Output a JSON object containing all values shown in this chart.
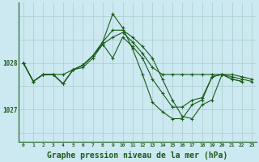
{
  "bg_color": "#cce8f0",
  "grid_color": "#aacccc",
  "line_color": "#1a5c1a",
  "xlabel": "Graphe pression niveau de la mer (hPa)",
  "xlabel_fontsize": 7,
  "xtick_labels": [
    "0",
    "1",
    "2",
    "3",
    "4",
    "5",
    "6",
    "7",
    "8",
    "9",
    "10",
    "11",
    "12",
    "13",
    "14",
    "15",
    "16",
    "17",
    "18",
    "19",
    "20",
    "21",
    "22",
    "23"
  ],
  "yticks": [
    1027,
    1028
  ],
  "ylim": [
    1026.3,
    1029.3
  ],
  "xlim": [
    -0.5,
    23.5
  ],
  "series": [
    [
      1028.0,
      1027.6,
      1027.75,
      1027.75,
      1027.75,
      1027.85,
      1027.9,
      1028.1,
      1028.4,
      1028.55,
      1028.65,
      1028.45,
      1028.2,
      1027.9,
      1027.75,
      1027.75,
      1027.75,
      1027.75,
      1027.75,
      1027.75,
      1027.75,
      1027.75,
      1027.7,
      1027.65
    ],
    [
      1028.0,
      1027.6,
      1027.75,
      1027.75,
      1027.55,
      1027.85,
      1027.95,
      1028.15,
      1028.4,
      1028.1,
      1028.55,
      1028.35,
      1028.1,
      1027.65,
      1027.35,
      1027.05,
      1027.05,
      1027.2,
      1027.25,
      1027.7,
      1027.75,
      1027.65,
      1027.6,
      null
    ],
    [
      1028.0,
      1027.6,
      1027.75,
      1027.75,
      1027.55,
      1027.85,
      1027.95,
      1028.15,
      1028.45,
      1028.7,
      1028.7,
      1028.55,
      1028.35,
      1028.1,
      1027.65,
      1027.2,
      1026.85,
      1026.8,
      1027.1,
      1027.2,
      1027.75,
      1027.7,
      1027.65,
      1027.6
    ],
    [
      1028.0,
      1027.6,
      1027.75,
      1027.75,
      1027.55,
      1027.85,
      1027.95,
      1028.15,
      1028.45,
      1029.05,
      1028.75,
      1028.3,
      1027.75,
      1027.15,
      1026.95,
      1026.8,
      1026.8,
      1027.1,
      1027.2,
      1027.7,
      1027.75,
      1027.65,
      1027.6,
      null
    ]
  ]
}
